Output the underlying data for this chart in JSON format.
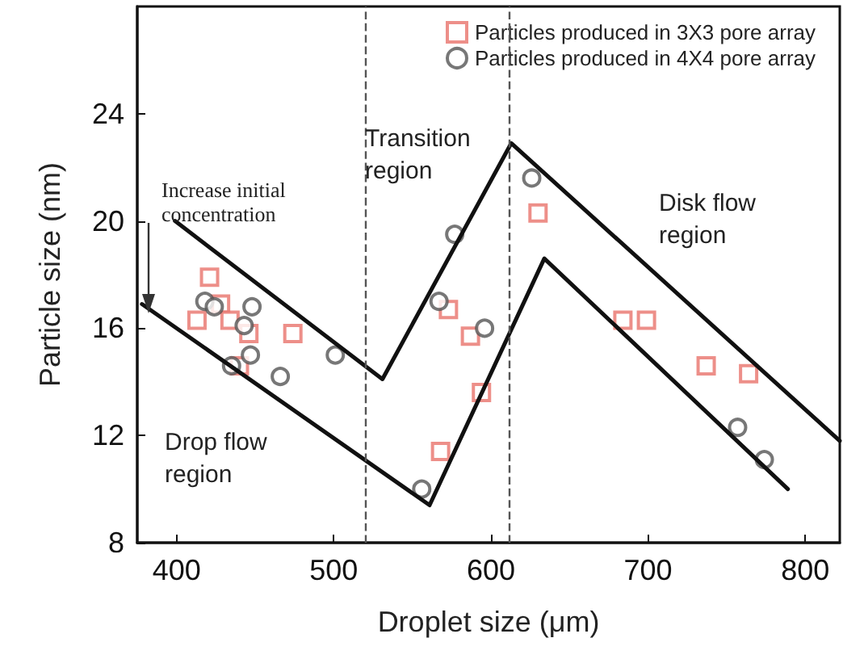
{
  "chart_data": {
    "type": "scatter",
    "xlabel": "Droplet size (μm)",
    "ylabel": "Particle size (nm)",
    "xlim": [
      375,
      822
    ],
    "xticks": [
      400,
      500,
      600,
      700,
      800
    ],
    "ylim": [
      8,
      28
    ],
    "yticks": [
      8,
      12,
      16,
      20,
      24
    ],
    "grid": false,
    "legend": "top right",
    "series": [
      {
        "name": "Particles produced in 3X3 pore array",
        "color": "#e8736c",
        "marker": "square",
        "x": [
          413,
          421,
          428,
          434,
          440,
          446,
          474,
          568,
          573,
          587,
          594,
          630,
          684,
          699,
          737,
          764
        ],
        "values": [
          16.3,
          17.9,
          16.9,
          16.3,
          14.6,
          15.8,
          15.8,
          11.4,
          16.7,
          15.7,
          13.6,
          20.3,
          16.3,
          16.3,
          14.6,
          14.3
        ]
      },
      {
        "name": "Particles produced in 4X4 pore array",
        "color": "#555555",
        "marker": "circle",
        "x": [
          418,
          424,
          435,
          443,
          447,
          448,
          466,
          501,
          556,
          567,
          577,
          596,
          626,
          757,
          774
        ],
        "values": [
          17.0,
          16.8,
          14.6,
          16.1,
          15.0,
          16.8,
          14.2,
          15.0,
          10.0,
          17.0,
          19.5,
          16.0,
          21.6,
          12.3,
          11.1
        ]
      },
      {
        "type": "line",
        "color": "#111111",
        "marker": "none",
        "line_style": "solid",
        "x": [
          399,
          531,
          613,
          822
        ],
        "values": [
          20.0,
          14.1,
          22.9,
          11.8
        ]
      },
      {
        "type": "line",
        "color": "#111111",
        "marker": "none",
        "line_style": "solid",
        "x": [
          378,
          561,
          634,
          789
        ],
        "values": [
          16.9,
          9.4,
          18.6,
          10.0
        ]
      }
    ],
    "ref_lines": [
      {
        "axis": "x",
        "value": 520,
        "line_style": "dashed",
        "color": "#555555"
      },
      {
        "axis": "x",
        "value": 612,
        "line_style": "dashed",
        "color": "#555555"
      }
    ],
    "annotations": [
      "Increase initial concentration",
      "Transition region",
      "Disk flow region",
      "Drop flow region"
    ]
  }
}
